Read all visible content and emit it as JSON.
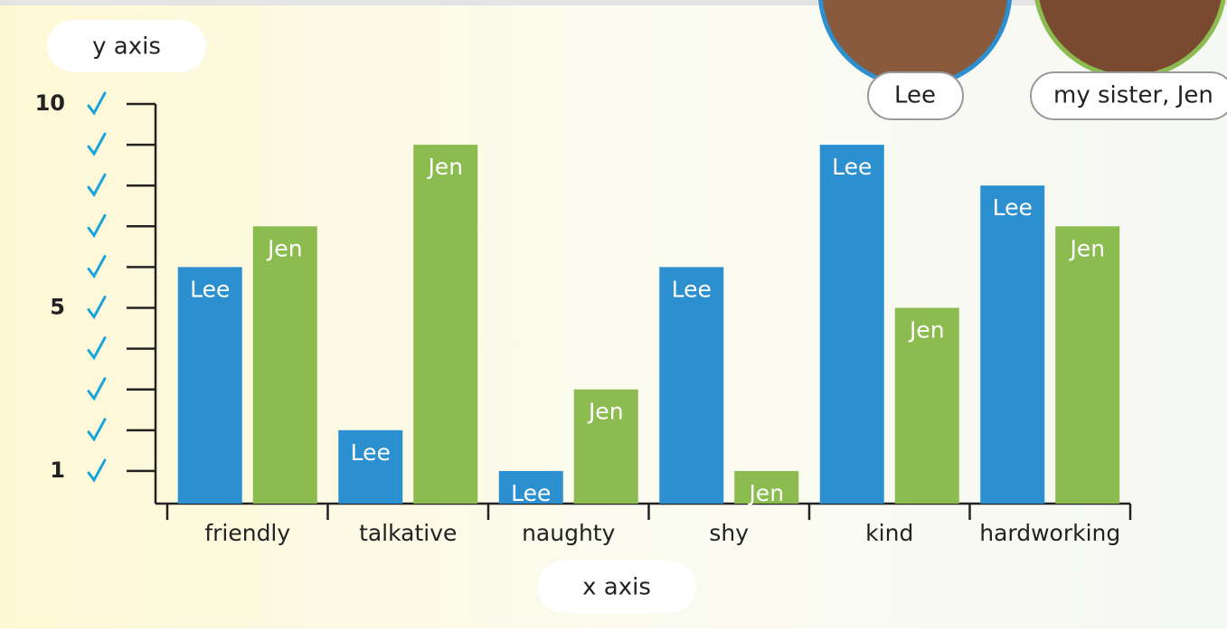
{
  "chart_data": {
    "type": "bar",
    "x_label": "x axis",
    "y_label": "y axis",
    "categories": [
      "friendly",
      "talkative",
      "naughty",
      "shy",
      "kind",
      "hardworking"
    ],
    "series": [
      {
        "name": "Lee",
        "color": "#2b8fd0",
        "values": [
          6,
          2,
          1,
          6,
          9,
          8
        ]
      },
      {
        "name": "Jen",
        "color": "#8cbb50",
        "values": [
          7,
          9,
          3,
          1,
          5,
          7
        ]
      }
    ],
    "photo_labels": [
      "Lee",
      "my sister, Jen"
    ],
    "ylim": [
      0.2,
      10
    ],
    "yticks": [
      1,
      {
        "value": 2,
        "label": null
      },
      {
        "value": 3,
        "label": null
      },
      {
        "value": 4,
        "label": null
      },
      5,
      {
        "value": 6,
        "label": null
      },
      {
        "value": 7,
        "label": null
      },
      {
        "value": 8,
        "label": null
      },
      {
        "value": 9,
        "label": null
      },
      10
    ]
  }
}
